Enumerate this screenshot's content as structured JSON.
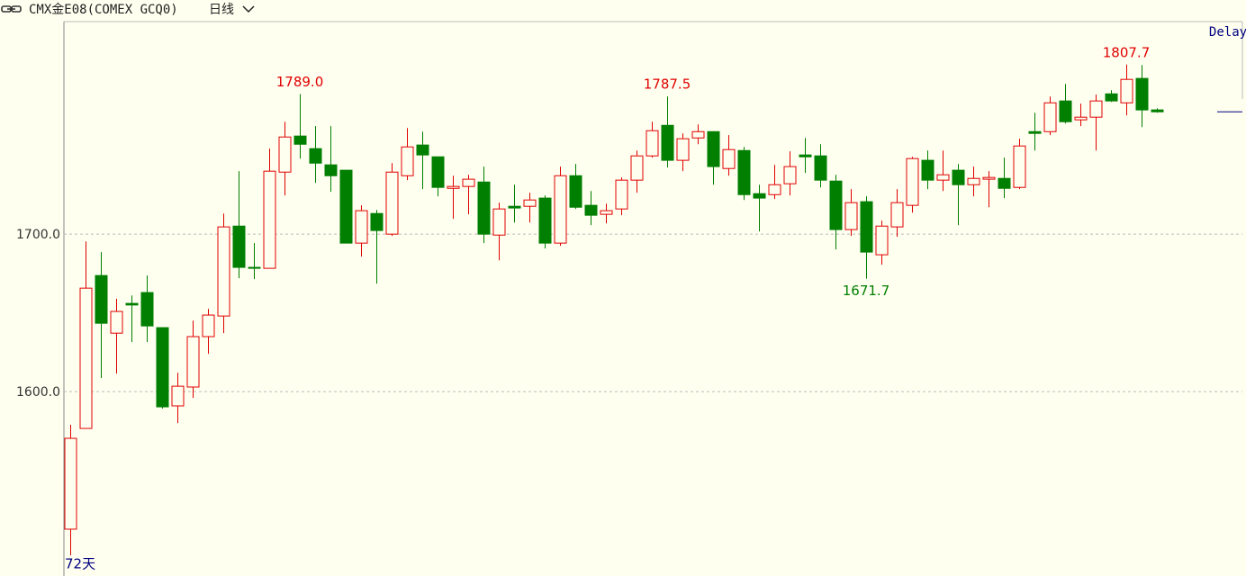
{
  "chart_data": {
    "type": "candlestick",
    "title": "CMX金E08(COMEX GCQ0)",
    "period": "日线",
    "status": "Delay",
    "count_label": "72天",
    "up_color": "#e00000",
    "down_color": "#007f00",
    "ylim": [
      1484,
      1835
    ],
    "yticks": [
      {
        "value": 1600,
        "label": "1600.0"
      },
      {
        "value": 1700,
        "label": "1700.0"
      }
    ],
    "grid": true,
    "open": [
      1512.6,
      1576.6,
      1673.7,
      1637.1,
      1656,
      1662.9,
      1640.6,
      1590.9,
      1602.9,
      1634.9,
      1648,
      1705.1,
      1678.9,
      1678.3,
      1739.4,
      1762.3,
      1754.3,
      1744,
      1740.6,
      1694.3,
      1713.1,
      1700,
      1737.1,
      1756.6,
      1749.1,
      1729.1,
      1730.3,
      1733.1,
      1699.4,
      1717.7,
      1717.7,
      1722.9,
      1694.3,
      1737.1,
      1718.3,
      1712.6,
      1716,
      1734.3,
      1749.7,
      1769.1,
      1746.9,
      1761.1,
      1765.1,
      1741.7,
      1753.1,
      1725.7,
      1725.1,
      1732,
      1750.3,
      1749.7,
      1733.7,
      1702.9,
      1720.6,
      1686.9,
      1704.6,
      1718.3,
      1746.9,
      1734.3,
      1740.6,
      1731.4,
      1734.9,
      1735.4,
      1729.7,
      1765.1,
      1765.1,
      1784.6,
      1772.6,
      1774.3,
      1789.1,
      1783.4,
      1798.9,
      1778.9
    ],
    "high": [
      1578.9,
      1695.4,
      1688.6,
      1658.9,
      1661.1,
      1673.7,
      1640.6,
      1612,
      1645.1,
      1652.6,
      1713.1,
      1740,
      1694.3,
      1754.3,
      1771.4,
      1789,
      1768.6,
      1768.6,
      1740.6,
      1718.3,
      1715.4,
      1745.1,
      1767.4,
      1765.1,
      1749.1,
      1737.1,
      1737.7,
      1742.9,
      1720,
      1731.4,
      1726.3,
      1724.6,
      1742.9,
      1744.6,
      1727.4,
      1719.4,
      1736,
      1753.1,
      1771.4,
      1787.5,
      1764,
      1769.7,
      1765.1,
      1762.9,
      1755.4,
      1731.4,
      1744,
      1752.6,
      1761.1,
      1757.1,
      1737.7,
      1728.6,
      1724,
      1708.6,
      1728.6,
      1749.1,
      1753.1,
      1753.1,
      1744.6,
      1742.9,
      1740,
      1748.6,
      1760.6,
      1777.1,
      1787.4,
      1795.4,
      1782.9,
      1788.6,
      1791.4,
      1807.7,
      1807.4,
      1780
    ],
    "low": [
      1496,
      1576.6,
      1608.6,
      1611.4,
      1631.4,
      1631.4,
      1589.1,
      1580,
      1596,
      1624,
      1637.1,
      1672,
      1671.4,
      1678.3,
      1724.6,
      1748,
      1732.6,
      1726.9,
      1694.3,
      1685.7,
      1668.6,
      1698.9,
      1734.3,
      1728.6,
      1724,
      1709.7,
      1712.6,
      1694.3,
      1683.4,
      1707.4,
      1707.4,
      1690.9,
      1692.6,
      1716,
      1705.7,
      1706.9,
      1712,
      1726.3,
      1748.6,
      1742.3,
      1740,
      1757.1,
      1731.4,
      1737.1,
      1721.7,
      1701.7,
      1722.3,
      1724.6,
      1738.9,
      1729.7,
      1690.3,
      1698.9,
      1671.7,
      1680.6,
      1698.3,
      1713.7,
      1728.6,
      1727.4,
      1705.7,
      1724,
      1717.1,
      1722.9,
      1728.6,
      1753.1,
      1762.9,
      1770.3,
      1768.6,
      1753.1,
      1784,
      1775.4,
      1768,
      1777.1
    ],
    "close": [
      1570.3,
      1665.7,
      1643.4,
      1650.9,
      1655,
      1641.7,
      1590.3,
      1603.4,
      1634.9,
      1648.6,
      1704.6,
      1678.9,
      1678.3,
      1740,
      1761.7,
      1757.1,
      1745.1,
      1737.1,
      1694.3,
      1714.9,
      1702.3,
      1739.4,
      1755.4,
      1750.3,
      1729.7,
      1730.3,
      1734.9,
      1700,
      1716,
      1716.6,
      1721.7,
      1694.3,
      1737.1,
      1717.1,
      1712,
      1714.9,
      1734.3,
      1749.7,
      1765.7,
      1746.9,
      1760.6,
      1765.1,
      1742.9,
      1753.7,
      1725.1,
      1722.9,
      1731.4,
      1742.9,
      1749.1,
      1734.3,
      1702.9,
      1720,
      1688.6,
      1705.1,
      1720,
      1748,
      1734.3,
      1737.7,
      1731.4,
      1735.4,
      1736,
      1729.1,
      1756,
      1764,
      1783.4,
      1771.4,
      1774.3,
      1784.6,
      1784.6,
      1798.3,
      1778.9,
      1777.7
    ],
    "annotations": [
      {
        "value": 1789.0,
        "label": "1789.0",
        "color": "#e00000"
      },
      {
        "value": 1787.5,
        "label": "1787.5",
        "color": "#e00000"
      },
      {
        "value": 1671.7,
        "label": "1671.7",
        "color": "#007f00"
      },
      {
        "value": 1807.7,
        "label": "1807.7",
        "color": "#e00000"
      }
    ]
  }
}
